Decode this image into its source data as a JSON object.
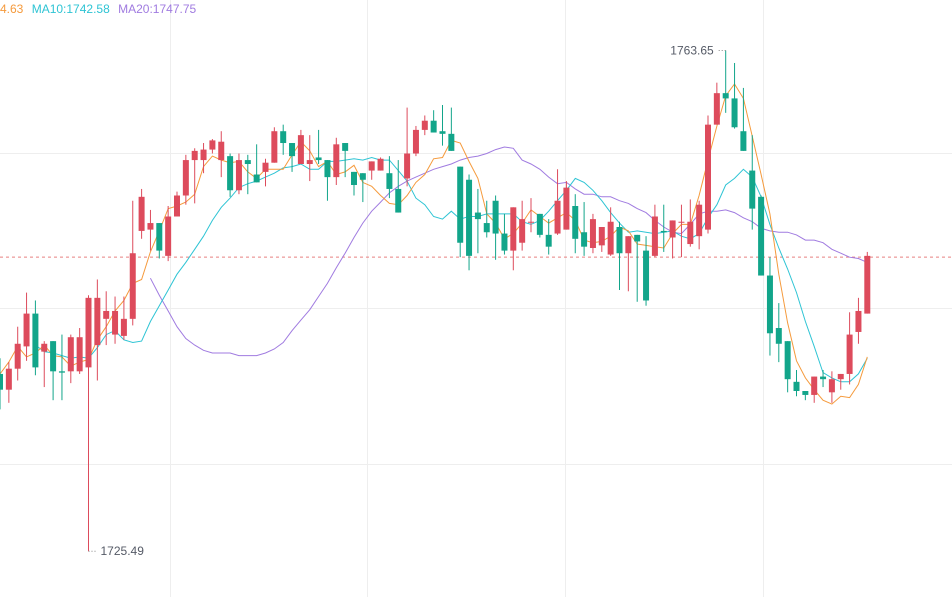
{
  "legend": {
    "ma5": "4.63",
    "ma10": "MA10:1742.58",
    "ma20": "MA20:1747.75"
  },
  "colors": {
    "up": "#dd4b5c",
    "down": "#12a58a",
    "ma5": "#f59a3c",
    "ma10": "#2ec4d4",
    "ma20": "#a07be0",
    "grid": "#eeeeee",
    "last_price_line": "#e88080"
  },
  "chart_data": {
    "type": "candlestick",
    "ylim": [
      1722.0,
      1767.5
    ],
    "last_price": 1747.9,
    "annotations": {
      "high": "1763.65",
      "low": "1725.49"
    },
    "candles": [
      [
        1739.0,
        1737.8,
        1740.2,
        1736.3
      ],
      [
        1737.8,
        1739.4,
        1739.9,
        1736.8
      ],
      [
        1739.4,
        1741.3,
        1742.6,
        1738.5
      ],
      [
        1741.1,
        1743.6,
        1745.2,
        1740.0
      ],
      [
        1743.6,
        1739.5,
        1744.6,
        1738.9
      ],
      [
        1740.7,
        1741.3,
        1741.5,
        1738.0
      ],
      [
        1741.5,
        1739.2,
        1741.5,
        1737.0
      ],
      [
        1739.2,
        1739.1,
        1742.0,
        1737.0
      ],
      [
        1739.2,
        1741.8,
        1742.0,
        1738.3
      ],
      [
        1739.2,
        1741.8,
        1742.5,
        1739.0
      ],
      [
        1739.5,
        1744.8,
        1745.0,
        1725.49
      ],
      [
        1741.2,
        1744.8,
        1746.2,
        1738.5
      ],
      [
        1743.2,
        1743.8,
        1745.3,
        1741.2
      ],
      [
        1742.0,
        1743.8,
        1744.9,
        1741.3
      ],
      [
        1741.9,
        1743.2,
        1744.9,
        1741.6
      ],
      [
        1743.2,
        1748.2,
        1752.2,
        1742.7
      ],
      [
        1749.9,
        1752.5,
        1753.1,
        1749.3
      ],
      [
        1750.0,
        1750.5,
        1751.5,
        1748.4
      ],
      [
        1750.5,
        1748.4,
        1749.7,
        1747.8
      ],
      [
        1748.0,
        1751.0,
        1751.8,
        1747.6
      ],
      [
        1751.0,
        1752.6,
        1752.9,
        1751.1
      ],
      [
        1752.6,
        1755.3,
        1755.7,
        1751.9
      ],
      [
        1755.3,
        1756.0,
        1756.2,
        1752.0
      ],
      [
        1755.3,
        1756.1,
        1756.6,
        1754.3
      ],
      [
        1756.1,
        1756.8,
        1756.9,
        1755.8
      ],
      [
        1755.3,
        1756.7,
        1757.5,
        1754.0
      ],
      [
        1755.6,
        1753.0,
        1755.8,
        1752.5
      ],
      [
        1753.0,
        1755.3,
        1755.8,
        1752.7
      ],
      [
        1755.3,
        1755.0,
        1755.7,
        1752.7
      ],
      [
        1754.2,
        1753.6,
        1756.5,
        1753.7
      ],
      [
        1754.4,
        1755.1,
        1755.4,
        1753.3
      ],
      [
        1755.1,
        1757.5,
        1757.8,
        1756.0
      ],
      [
        1757.5,
        1756.6,
        1758.0,
        1755.7
      ],
      [
        1756.6,
        1755.6,
        1756.3,
        1754.4
      ],
      [
        1755.0,
        1757.2,
        1757.6,
        1756.0
      ],
      [
        1755.0,
        1755.3,
        1757.2,
        1753.7
      ],
      [
        1755.5,
        1755.3,
        1757.6,
        1755.0
      ],
      [
        1755.3,
        1754.0,
        1755.3,
        1752.2
      ],
      [
        1754.0,
        1756.5,
        1757.0,
        1753.4
      ],
      [
        1756.6,
        1756.0,
        1756.5,
        1754.0
      ],
      [
        1754.4,
        1753.4,
        1754.4,
        1752.6
      ],
      [
        1754.3,
        1753.8,
        1753.9,
        1752.1
      ],
      [
        1754.5,
        1755.2,
        1754.8,
        1753.8
      ],
      [
        1754.5,
        1755.4,
        1755.5,
        1754.5
      ],
      [
        1754.3,
        1753.1,
        1755.6,
        1752.4
      ],
      [
        1753.1,
        1751.3,
        1755.3,
        1751.3
      ],
      [
        1753.9,
        1755.8,
        1759.3,
        1753.3
      ],
      [
        1755.8,
        1757.6,
        1757.9,
        1755.6
      ],
      [
        1757.6,
        1758.3,
        1758.7,
        1757.2
      ],
      [
        1758.3,
        1757.4,
        1759.1,
        1757.4
      ],
      [
        1757.5,
        1757.3,
        1759.5,
        1756.4
      ],
      [
        1757.3,
        1756.0,
        1759.3,
        1756.4
      ],
      [
        1754.8,
        1749.0,
        1754.1,
        1747.9
      ],
      [
        1753.8,
        1748.0,
        1754.2,
        1746.9
      ],
      [
        1751.3,
        1750.8,
        1753.1,
        1748.2
      ],
      [
        1750.5,
        1749.8,
        1752.2,
        1749.4
      ],
      [
        1752.2,
        1749.7,
        1752.6,
        1747.7
      ],
      [
        1749.7,
        1748.4,
        1751.2,
        1748.1
      ],
      [
        1748.4,
        1751.7,
        1750.7,
        1746.9
      ],
      [
        1749.0,
        1750.8,
        1752.2,
        1748.4
      ],
      [
        1750.6,
        1750.6,
        1752.4,
        1749.8
      ],
      [
        1751.2,
        1749.6,
        1750.7,
        1749.4
      ],
      [
        1749.6,
        1748.7,
        1750.8,
        1748.1
      ],
      [
        1749.7,
        1752.2,
        1754.6,
        1749.6
      ],
      [
        1750.0,
        1753.2,
        1753.7,
        1751.5
      ],
      [
        1751.8,
        1749.3,
        1752.7,
        1748.2
      ],
      [
        1749.8,
        1748.7,
        1752.1,
        1748.0
      ],
      [
        1748.6,
        1750.8,
        1751.2,
        1748.2
      ],
      [
        1748.8,
        1750.2,
        1750.2,
        1748.3
      ],
      [
        1748.1,
        1750.6,
        1751.7,
        1748.0
      ],
      [
        1750.2,
        1748.2,
        1750.6,
        1745.4
      ],
      [
        1748.2,
        1749.5,
        1748.8,
        1745.3
      ],
      [
        1749.6,
        1749.1,
        1749.2,
        1744.5
      ],
      [
        1748.4,
        1744.6,
        1749.5,
        1744.2
      ],
      [
        1748.0,
        1751.0,
        1751.9,
        1747.9
      ],
      [
        1749.9,
        1749.8,
        1751.9,
        1748.3
      ],
      [
        1749.4,
        1750.7,
        1750.6,
        1747.8
      ],
      [
        1750.6,
        1750.6,
        1751.9,
        1747.9
      ],
      [
        1748.9,
        1750.6,
        1752.3,
        1748.7
      ],
      [
        1749.5,
        1751.9,
        1752.2,
        1748.5
      ],
      [
        1750.0,
        1758.0,
        1758.7,
        1749.7
      ],
      [
        1758.0,
        1760.4,
        1761.2,
        1758.9
      ],
      [
        1760.4,
        1760.0,
        1763.65,
        1758.9
      ],
      [
        1760.0,
        1757.8,
        1762.7,
        1757.7
      ],
      [
        1757.5,
        1756.0,
        1760.8,
        1756.8
      ],
      [
        1754.5,
        1751.6,
        1757.2,
        1750.0
      ],
      [
        1752.5,
        1746.5,
        1752.6,
        1749.2
      ],
      [
        1746.5,
        1742.1,
        1747.9,
        1740.4
      ],
      [
        1742.5,
        1741.3,
        1744.4,
        1739.9
      ],
      [
        1741.5,
        1738.6,
        1740.5,
        1737.6
      ],
      [
        1738.4,
        1737.7,
        1739.3,
        1737.3
      ],
      [
        1737.7,
        1737.4,
        1737.7,
        1737.0
      ],
      [
        1737.4,
        1738.8,
        1737.9,
        1736.8
      ],
      [
        1738.8,
        1738.6,
        1739.3,
        1738.0
      ],
      [
        1737.6,
        1738.6,
        1739.2,
        1736.8
      ],
      [
        1738.6,
        1739.0,
        1738.4,
        1737.8
      ],
      [
        1739.0,
        1742.0,
        1743.7,
        1738.2
      ],
      [
        1742.2,
        1743.8,
        1744.8,
        1741.3
      ],
      [
        1743.6,
        1748.0,
        1748.3,
        1743.6
      ]
    ],
    "ma5": [
      1739.0,
      1739.9,
      1741.1,
      1740.3,
      1740.6,
      1741.2,
      1740.4,
      1740.3,
      1739.6,
      1739.9,
      1740.1,
      1741.6,
      1742.6,
      1743.8,
      1744.6,
      1745.9,
      1746.2,
      1748.3,
      1749.9,
      1751.6,
      1751.8,
      1752.1,
      1752.7,
      1754.8,
      1755.6,
      1755.3,
      1755.1,
      1755.2,
      1754.4,
      1753.9,
      1754.6,
      1754.6,
      1754.6,
      1755.7,
      1756.7,
      1756.0,
      1754.8,
      1755.2,
      1754.2,
      1754.4,
      1754.9,
      1753.6,
      1753.3,
      1752.6,
      1752.0,
      1751.9,
      1752.6,
      1753.6,
      1754.2,
      1755.4,
      1755.5,
      1756.8,
      1756.6,
      1755.2,
      1753.9,
      1751.2,
      1750.5,
      1749.3,
      1749.7,
      1750.5,
      1751.5,
      1751.0,
      1750.5,
      1750.9,
      1751.3,
      1750.7,
      1749.2,
      1749.0,
      1749.1,
      1749.5,
      1750.2,
      1749.9,
      1748.9,
      1748.8,
      1748.7,
      1748.6,
      1749.7,
      1750.4,
      1750.4,
      1752.6,
      1755.3,
      1757.9,
      1760.2,
      1761.1,
      1760.0,
      1757.1,
      1754.2,
      1751.2,
      1746.6,
      1742.9,
      1740.0,
      1738.7,
      1737.8,
      1737.0,
      1736.7,
      1737.3,
      1737.2,
      1738.2,
      1740.3
    ],
    "ma10": [
      1741.2,
      1740.7,
      1740.6,
      1740.4,
      1740.2,
      1740.3,
      1740.2,
      1741.0,
      1742.0,
      1742.3,
      1741.6,
      1741.4,
      1741.5,
      1743.0,
      1744.2,
      1745.4,
      1746.6,
      1747.5,
      1748.5,
      1749.5,
      1750.7,
      1751.7,
      1752.4,
      1753.2,
      1753.5,
      1753.7,
      1754.0,
      1754.3,
      1754.7,
      1754.8,
      1755.0,
      1754.6,
      1754.6,
      1755.2,
      1755.2,
      1755.3,
      1755.4,
      1755.3,
      1755.5,
      1755.3,
      1755.3,
      1754.5,
      1753.7,
      1752.4,
      1751.9,
      1751.0,
      1750.8,
      1751.4,
      1750.8,
      1751.0,
      1751.0,
      1751.2,
      1751.2,
      1751.2,
      1751.2,
      1750.6,
      1750.4,
      1750.7,
      1751.4,
      1752.2,
      1753.0,
      1753.9,
      1753.6,
      1753.0,
      1752.2,
      1751.3,
      1750.5,
      1749.8,
      1749.9,
      1749.8,
      1749.7,
      1749.8,
      1749.9,
      1749.5,
      1749.3,
      1749.7,
      1750.9,
      1751.9,
      1753.4,
      1753.9,
      1754.6,
      1754.0,
      1752.5,
      1750.4,
      1748.6,
      1747.0,
      1745.2,
      1743.0,
      1741.1,
      1739.1,
      1738.7,
      1738.4,
      1738.4,
      1739.0,
      1740.2
    ],
    "ma20": [
      1746.3,
      1745.0,
      1743.8,
      1742.6,
      1741.7,
      1741.2,
      1740.8,
      1740.6,
      1740.6,
      1740.6,
      1740.4,
      1740.4,
      1740.4,
      1740.6,
      1740.9,
      1741.4,
      1742.3,
      1743.1,
      1743.9,
      1744.9,
      1745.9,
      1747.1,
      1748.2,
      1749.4,
      1750.5,
      1751.4,
      1752.1,
      1752.8,
      1753.3,
      1753.7,
      1754.0,
      1754.3,
      1754.6,
      1754.8,
      1755.0,
      1755.3,
      1755.5,
      1755.6,
      1755.8,
      1756.1,
      1756.3,
      1756.2,
      1755.3,
      1755.0,
      1754.6,
      1754.0,
      1753.5,
      1753.6,
      1753.1,
      1752.7,
      1752.7,
      1752.5,
      1752.5,
      1752.2,
      1752.0,
      1751.6,
      1751.3,
      1750.7,
      1750.2,
      1749.8,
      1749.7,
      1750.4,
      1751.2,
      1751.4,
      1751.4,
      1751.5,
      1751.3,
      1750.9,
      1750.6,
      1750.1,
      1749.9,
      1749.8,
      1749.8,
      1749.6,
      1749.2,
      1749.2,
      1749.0,
      1748.5,
      1748.2,
      1747.9,
      1747.8,
      1747.5
    ]
  }
}
